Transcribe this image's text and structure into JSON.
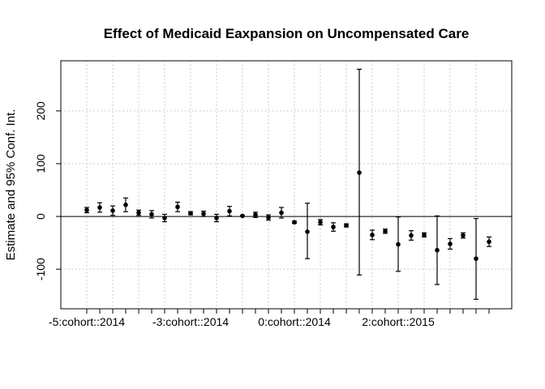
{
  "chart_data": {
    "type": "scatter",
    "title": "Effect of Medicaid Eaxpansion on Uncompensated Care",
    "ylabel": "Estimate and 95% Conf. Int.",
    "xlabel": "",
    "ylim": [
      -175,
      295
    ],
    "y_ticks": [
      -100,
      0,
      100,
      200
    ],
    "reference_line": 0,
    "grid": true,
    "x_tick_labels": [
      {
        "index": 0,
        "label": "-5:cohort::2014"
      },
      {
        "index": 8,
        "label": "-3:cohort::2014"
      },
      {
        "index": 16,
        "label": "0:cohort::2014"
      },
      {
        "index": 24,
        "label": "2:cohort::2015"
      }
    ],
    "points": [
      {
        "estimate": 12,
        "lower": 7,
        "upper": 17
      },
      {
        "estimate": 17,
        "lower": 8,
        "upper": 26
      },
      {
        "estimate": 11,
        "lower": 2,
        "upper": 20
      },
      {
        "estimate": 22,
        "lower": 9,
        "upper": 35
      },
      {
        "estimate": 7,
        "lower": 2,
        "upper": 12
      },
      {
        "estimate": 4,
        "lower": -3,
        "upper": 11
      },
      {
        "estimate": -3,
        "lower": -10,
        "upper": 4
      },
      {
        "estimate": 18,
        "lower": 9,
        "upper": 27
      },
      {
        "estimate": 6,
        "lower": 3,
        "upper": 9
      },
      {
        "estimate": 5,
        "lower": 0,
        "upper": 10
      },
      {
        "estimate": -3,
        "lower": -10,
        "upper": 4
      },
      {
        "estimate": 10,
        "lower": 1,
        "upper": 19
      },
      {
        "estimate": 1,
        "lower": 0,
        "upper": 2
      },
      {
        "estimate": 3,
        "lower": -2,
        "upper": 8
      },
      {
        "estimate": -2,
        "lower": -7,
        "upper": 3
      },
      {
        "estimate": 7,
        "lower": -3,
        "upper": 17
      },
      {
        "estimate": -11,
        "lower": -13,
        "upper": -9
      },
      {
        "estimate": -29,
        "lower": -80,
        "upper": 25
      },
      {
        "estimate": -11,
        "lower": -16,
        "upper": -6
      },
      {
        "estimate": -20,
        "lower": -28,
        "upper": -12
      },
      {
        "estimate": -17,
        "lower": -20,
        "upper": -14
      },
      {
        "estimate": 83,
        "lower": -111,
        "upper": 279
      },
      {
        "estimate": -35,
        "lower": -44,
        "upper": -26
      },
      {
        "estimate": -28,
        "lower": -32,
        "upper": -24
      },
      {
        "estimate": -53,
        "lower": -104,
        "upper": -1
      },
      {
        "estimate": -36,
        "lower": -45,
        "upper": -27
      },
      {
        "estimate": -35,
        "lower": -39,
        "upper": -31
      },
      {
        "estimate": -64,
        "lower": -129,
        "upper": 1
      },
      {
        "estimate": -52,
        "lower": -62,
        "upper": -42
      },
      {
        "estimate": -36,
        "lower": -41,
        "upper": -31
      },
      {
        "estimate": -80,
        "lower": -157,
        "upper": -4
      },
      {
        "estimate": -48,
        "lower": -57,
        "upper": -39
      }
    ]
  }
}
